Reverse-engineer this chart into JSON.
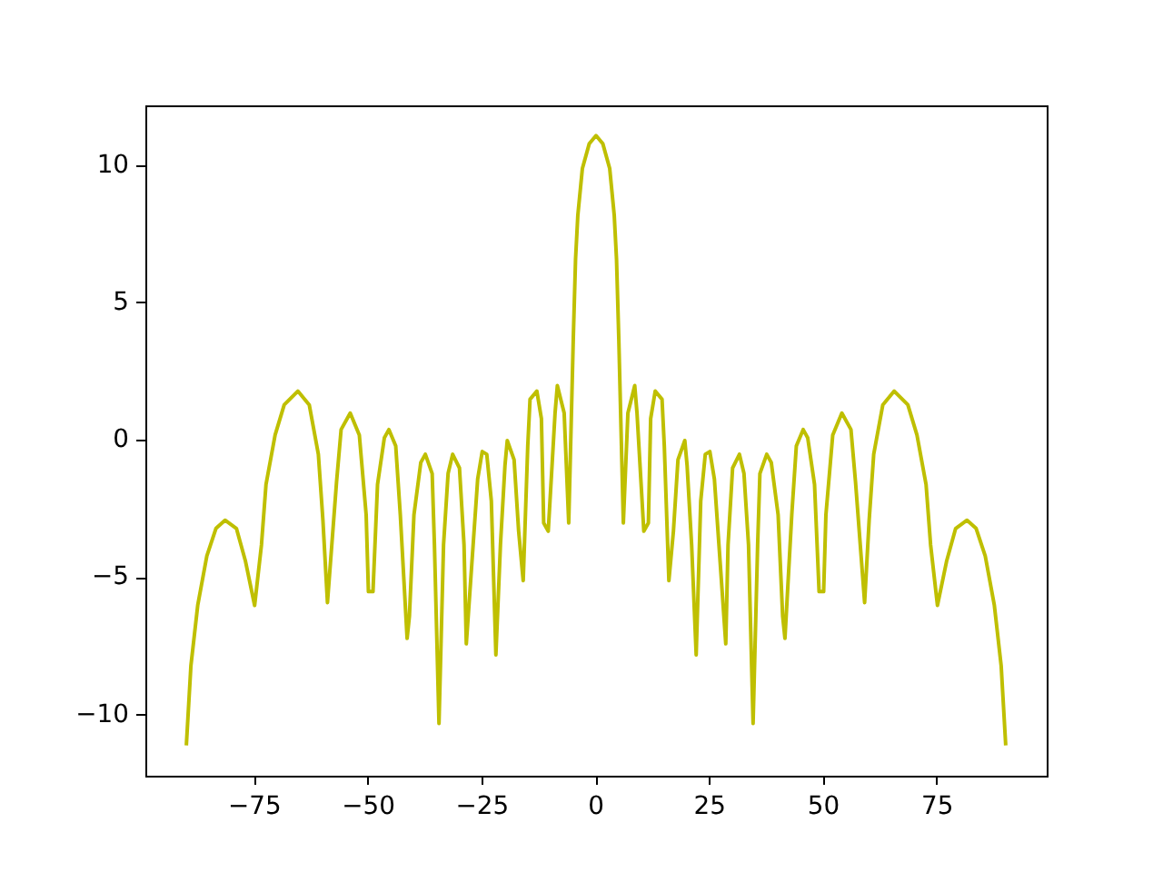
{
  "chart_data": {
    "type": "line",
    "x": [
      -90,
      -89,
      -87.5,
      -85.5,
      -83.5,
      -81.5,
      -79,
      -77,
      -75,
      -73.5,
      -72.5,
      -70.5,
      -68.5,
      -65.5,
      -63,
      -61,
      -60,
      -59,
      -57,
      -56,
      -54,
      -52,
      -50.5,
      -50,
      -49,
      -48,
      -46.5,
      -45.5,
      -44,
      -43,
      -41.5,
      -41,
      -40,
      -38.5,
      -37.5,
      -36,
      -35.5,
      -34.5,
      -33.5,
      -32.5,
      -31.5,
      -30,
      -29,
      -28.5,
      -27,
      -26,
      -25,
      -24,
      -23,
      -22,
      -21,
      -20,
      -19.5,
      -18,
      -17,
      -16,
      -15,
      -14.5,
      -13,
      -12,
      -11.5,
      -10.5,
      -9,
      -8.5,
      -7,
      -6,
      -5,
      -4.5,
      -4,
      -3,
      -1.5,
      0,
      1.5,
      3,
      4,
      4.5,
      5,
      6,
      7,
      8.5,
      9,
      10.5,
      11.5,
      12,
      13,
      14.5,
      15,
      16,
      17,
      18,
      19.5,
      20,
      21,
      22,
      23,
      24,
      25,
      26,
      27,
      28.5,
      29,
      30,
      31.5,
      32.5,
      33.5,
      34.5,
      35.5,
      36,
      37.5,
      38.5,
      40,
      41,
      41.5,
      43,
      44,
      45.5,
      46.5,
      48,
      49,
      50,
      50.5,
      52,
      54,
      56,
      57,
      59,
      60,
      61,
      63,
      65.5,
      68.5,
      70.5,
      72.5,
      73.5,
      75,
      77,
      79,
      81.5,
      83.5,
      85.5,
      87.5,
      89,
      90
    ],
    "series": [
      {
        "color": "#bfbf00",
        "values": [
          -11.1,
          -8.2,
          -6,
          -4.2,
          -3.2,
          -2.9,
          -3.2,
          -4.4,
          -6,
          -3.8,
          -1.6,
          0.2,
          1.3,
          1.8,
          1.3,
          -0.5,
          -2.9,
          -5.9,
          -1.5,
          0.4,
          1,
          0.2,
          -2.7,
          -5.5,
          -5.5,
          -1.6,
          0.1,
          0.4,
          -0.2,
          -2.7,
          -7.2,
          -6.4,
          -2.7,
          -0.8,
          -0.5,
          -1.2,
          -3.8,
          -10.3,
          -3.8,
          -1.2,
          -0.5,
          -1,
          -3.8,
          -7.4,
          -3.8,
          -1.4,
          -0.4,
          -0.5,
          -2.2,
          -7.8,
          -3.8,
          -0.9,
          0,
          -0.7,
          -3.3,
          -5.1,
          -0.2,
          1.5,
          1.8,
          0.8,
          -3,
          -3.3,
          1,
          2,
          1,
          -3,
          3.7,
          6.6,
          8.2,
          9.9,
          10.8,
          11.1,
          10.8,
          9.9,
          8.2,
          6.6,
          3.7,
          -3,
          1,
          2,
          1,
          -3.3,
          -3,
          0.8,
          1.8,
          1.5,
          -0.2,
          -5.1,
          -3.3,
          -0.7,
          0,
          -0.9,
          -3.8,
          -7.8,
          -2.2,
          -0.5,
          -0.4,
          -1.4,
          -3.8,
          -7.4,
          -3.8,
          -1,
          -0.5,
          -1.2,
          -3.8,
          -10.3,
          -3.8,
          -1.2,
          -0.5,
          -0.8,
          -2.7,
          -6.4,
          -7.2,
          -2.7,
          -0.2,
          0.4,
          0.1,
          -1.6,
          -5.5,
          -5.5,
          -2.7,
          0.2,
          1,
          0.4,
          -1.5,
          -5.9,
          -2.9,
          -0.5,
          1.3,
          1.8,
          1.3,
          0.2,
          -1.6,
          -3.8,
          -6,
          -4.4,
          -3.2,
          -2.9,
          -3.2,
          -4.2,
          -6,
          -8.2,
          -11.1
        ]
      }
    ],
    "xlim": [
      -99,
      99
    ],
    "ylim": [
      -12.2,
      12.2
    ],
    "xticks": [
      {
        "value": -75,
        "label": "−75"
      },
      {
        "value": -50,
        "label": "−50"
      },
      {
        "value": -25,
        "label": "−25"
      },
      0,
      25,
      50,
      75
    ],
    "yticks": [
      {
        "value": -10,
        "label": "−10"
      },
      {
        "value": -5,
        "label": "−5"
      },
      0,
      5,
      10
    ]
  }
}
